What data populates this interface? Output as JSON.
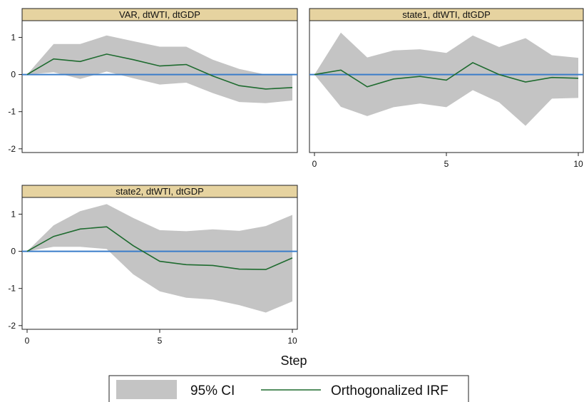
{
  "chart_data": {
    "type": "line",
    "xlabel": "Step",
    "legend": {
      "placement": "bottom",
      "items": [
        "95% CI",
        "Orthogonalized IRF"
      ]
    },
    "colors": {
      "ci": "#c4c4c4",
      "irf": "#1e6b2f",
      "zero_line": "#3a7dc9",
      "header_bg": "#e6d3a0"
    },
    "panels": [
      {
        "title": "VAR, dtWTI, dtGDP",
        "x": [
          0,
          1,
          2,
          3,
          4,
          5,
          6,
          7,
          8,
          9,
          10
        ],
        "irf": [
          0,
          0.42,
          0.35,
          0.55,
          0.4,
          0.23,
          0.27,
          -0.04,
          -0.3,
          -0.39,
          -0.35
        ],
        "lower": [
          0,
          0.06,
          -0.12,
          0.08,
          -0.1,
          -0.27,
          -0.22,
          -0.5,
          -0.74,
          -0.77,
          -0.7
        ],
        "upper": [
          0,
          0.82,
          0.82,
          1.05,
          0.9,
          0.75,
          0.75,
          0.4,
          0.15,
          0.0,
          0.0
        ],
        "ylim": [
          -2.1,
          1.45
        ],
        "yticks": [
          1,
          0,
          -1,
          -2
        ],
        "xticks": []
      },
      {
        "title": "state1, dtWTI, dtGDP",
        "x": [
          0,
          1,
          2,
          3,
          4,
          5,
          6,
          7,
          8,
          9,
          10
        ],
        "irf": [
          0,
          0.12,
          -0.33,
          -0.12,
          -0.05,
          -0.15,
          0.32,
          0.0,
          -0.2,
          -0.08,
          -0.1
        ],
        "lower": [
          0,
          -0.87,
          -1.12,
          -0.88,
          -0.78,
          -0.88,
          -0.42,
          -0.75,
          -1.38,
          -0.65,
          -0.63
        ],
        "upper": [
          0,
          1.13,
          0.46,
          0.65,
          0.68,
          0.58,
          1.05,
          0.74,
          0.98,
          0.52,
          0.45
        ],
        "ylim": [
          -2.1,
          1.45
        ],
        "yticks": [],
        "xticks": [
          "0",
          "5",
          "10"
        ]
      },
      {
        "title": "state2, dtWTI, dtGDP",
        "x": [
          0,
          1,
          2,
          3,
          4,
          5,
          6,
          7,
          8,
          9,
          10
        ],
        "irf": [
          0,
          0.4,
          0.6,
          0.66,
          0.15,
          -0.27,
          -0.36,
          -0.38,
          -0.48,
          -0.49,
          -0.18
        ],
        "lower": [
          0,
          0.12,
          0.12,
          0.06,
          -0.62,
          -1.08,
          -1.25,
          -1.3,
          -1.45,
          -1.65,
          -1.35
        ],
        "upper": [
          0,
          0.7,
          1.08,
          1.27,
          0.9,
          0.57,
          0.54,
          0.59,
          0.55,
          0.68,
          0.98
        ],
        "ylim": [
          -2.1,
          1.45
        ],
        "yticks": [
          1,
          0,
          -1,
          -2
        ],
        "xticks": [
          "0",
          "5",
          "10"
        ]
      }
    ]
  }
}
